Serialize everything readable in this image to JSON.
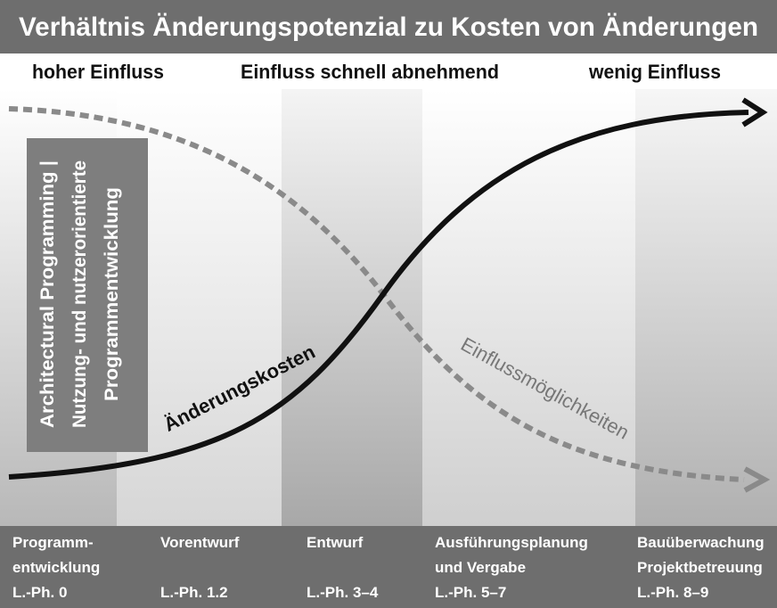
{
  "header": {
    "title": "Verhältnis Änderungspotenzial zu Kosten von Änderungen"
  },
  "influence_labels": [
    "hoher Einfluss",
    "Einfluss schnell abnehmend",
    "wenig Einfluss"
  ],
  "side_box": {
    "lines": [
      "Architectural Programming |",
      "Nutzung- und nutzerorientierte",
      "Programmentwicklung"
    ]
  },
  "curves": {
    "cost": "Änderungskosten",
    "influence": "Einflussmöglichkeiten"
  },
  "phases": [
    {
      "name": [
        "Programm-",
        "entwicklung"
      ],
      "code": "L.-Ph. 0"
    },
    {
      "name": [
        "Vorentwurf"
      ],
      "code": "L.-Ph. 1.2"
    },
    {
      "name": [
        "Entwurf"
      ],
      "code": "L.-Ph. 3–4"
    },
    {
      "name": [
        "Ausführungsplanung",
        "und Vergabe"
      ],
      "code": "L.-Ph. 5–7"
    },
    {
      "name": [
        "Bauüberwachung",
        "Projektbetreuung"
      ],
      "code": "L.-Ph. 8–9"
    }
  ]
}
